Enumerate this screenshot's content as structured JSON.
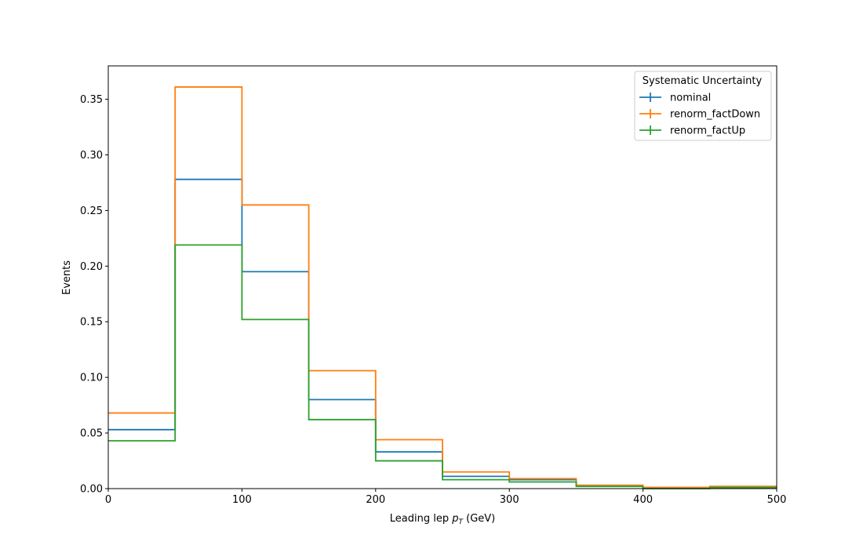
{
  "chart_data": {
    "type": "histogram-step",
    "title": "",
    "xlabel_prefix": "Leading lep ",
    "xlabel_var": "p",
    "xlabel_sub": "T",
    "xlabel_suffix": " (GeV)",
    "ylabel": "Events",
    "xlim": [
      0,
      500
    ],
    "ylim": [
      0,
      0.38
    ],
    "x_ticks": [
      0,
      100,
      200,
      300,
      400,
      500
    ],
    "y_ticks": [
      0.0,
      0.05,
      0.1,
      0.15,
      0.2,
      0.25,
      0.3,
      0.35
    ],
    "bin_edges": [
      0,
      50,
      100,
      150,
      200,
      250,
      300,
      350,
      400,
      450,
      500
    ],
    "legend": {
      "title": "Systematic Uncertainty",
      "position": "top-right"
    },
    "series": [
      {
        "name": "nominal",
        "color": "#1f77b4",
        "values": [
          0.053,
          0.278,
          0.195,
          0.08,
          0.033,
          0.011,
          0.008,
          0.003,
          0.001,
          0.001
        ]
      },
      {
        "name": "renorm_factDown",
        "color": "#ff7f0e",
        "values": [
          0.068,
          0.361,
          0.255,
          0.106,
          0.044,
          0.015,
          0.009,
          0.003,
          0.001,
          0.002
        ]
      },
      {
        "name": "renorm_factUp",
        "color": "#2ca02c",
        "values": [
          0.043,
          0.219,
          0.152,
          0.062,
          0.025,
          0.008,
          0.006,
          0.002,
          0.0,
          0.001
        ]
      }
    ]
  }
}
